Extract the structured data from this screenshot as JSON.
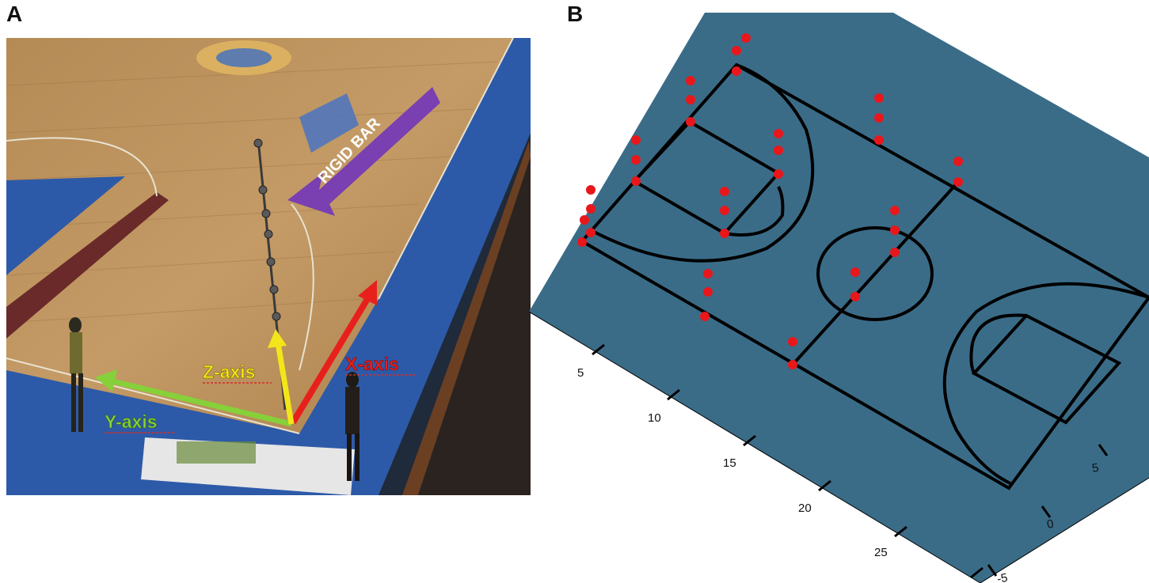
{
  "panels": {
    "a_letter": "A",
    "b_letter": "B"
  },
  "photo": {
    "rigid_bar_label": "RIGID BAR",
    "z_axis_label": "Z-axis",
    "x_axis_label": "X-axis",
    "y_axis_label": "Y-axis",
    "colors": {
      "floor": "#b98f5a",
      "blue_border": "#2d5aa8",
      "rigid_bar_arrow": "#7a3fb0",
      "x_axis": "#e8201c",
      "y_axis": "#86d03a",
      "z_axis": "#f2e61a"
    }
  },
  "court3d": {
    "colors": {
      "surface": "#3a6c88",
      "lines": "#000000",
      "markers": "#e8171c"
    },
    "axis_ticks_left": [
      "5",
      "10",
      "15",
      "20",
      "25"
    ],
    "axis_ticks_right": [
      "5",
      "0",
      "-5"
    ]
  }
}
